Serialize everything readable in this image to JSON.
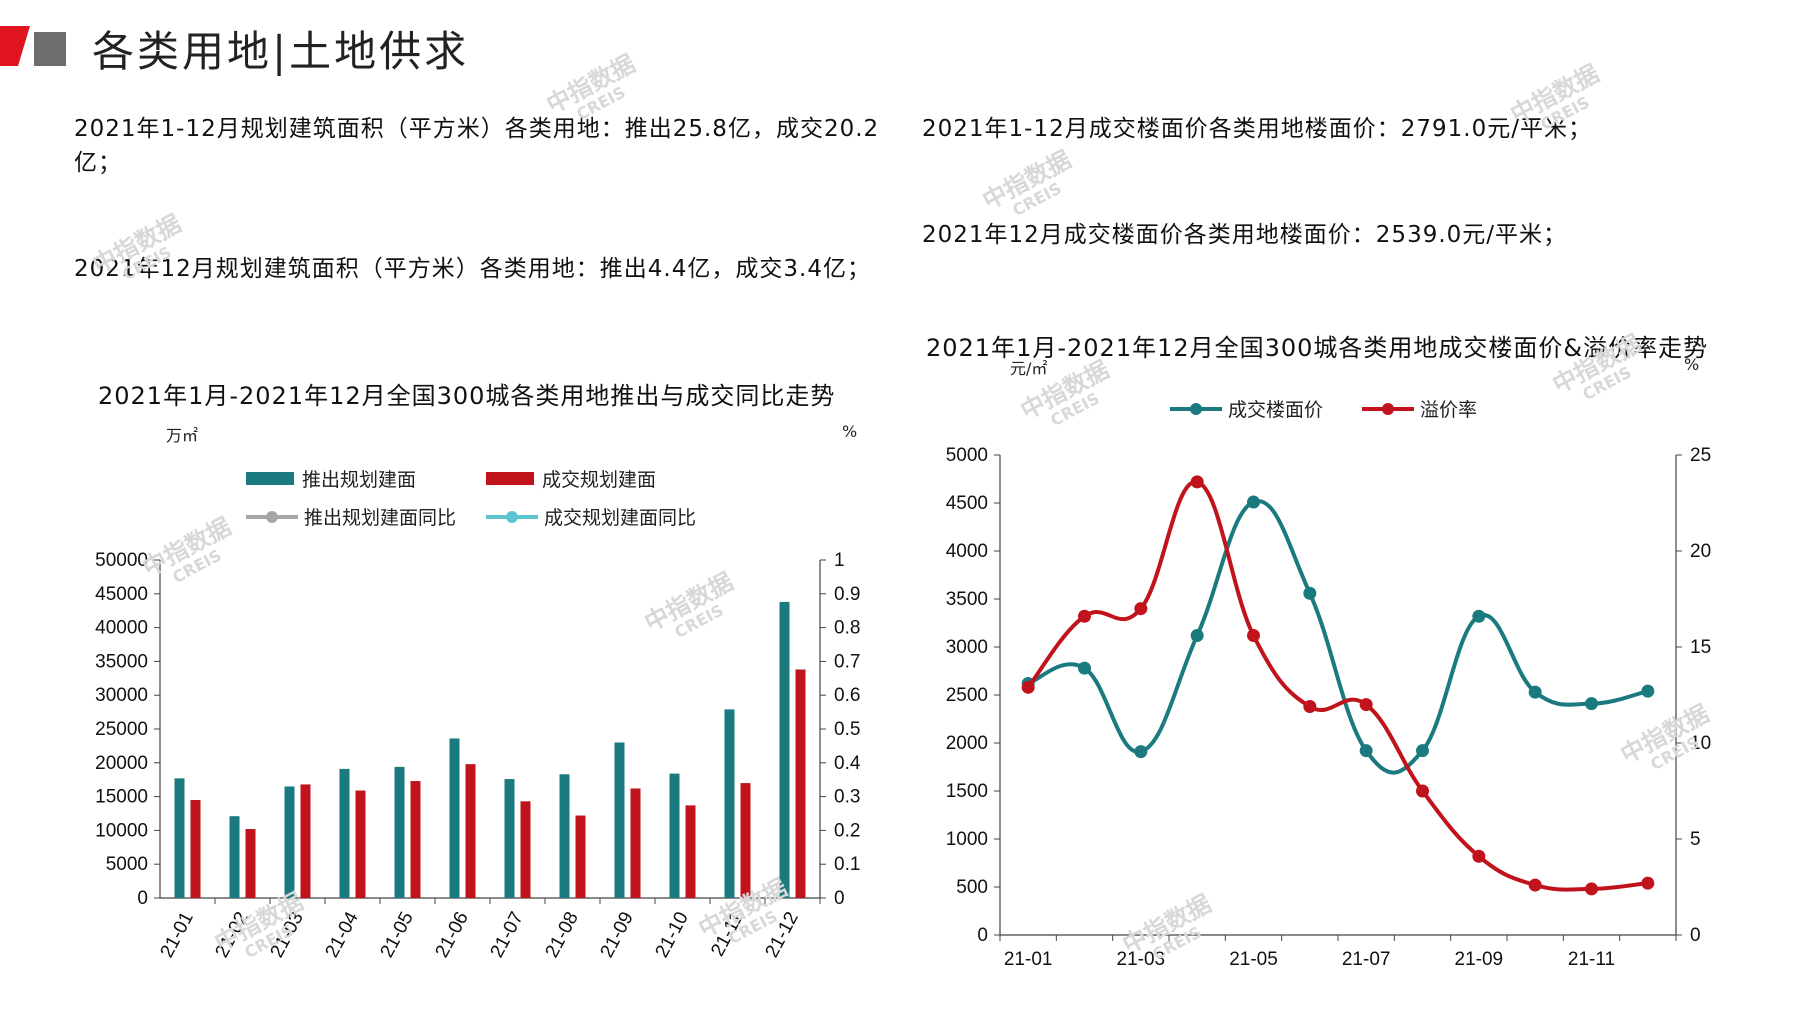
{
  "header": {
    "title": "各类用地|土地供求"
  },
  "summaries": {
    "left_1": "2021年1-12月规划建筑面积（平方米）各类用地：推出25.8亿，成交20.2亿；",
    "left_2": "2021年12月规划建筑面积（平方米）各类用地：推出4.4亿，成交3.4亿；",
    "right_1": "2021年1-12月成交楼面价各类用地楼面价：2791.0元/平米；",
    "right_2": "2021年12月成交楼面价各类用地楼面价：2539.0元/平米；"
  },
  "watermark": {
    "text": "中指数据",
    "sub": "CREIS"
  },
  "colors": {
    "teal": "#1b7a80",
    "red": "#c0131b",
    "gray": "#a6a6a6",
    "cyan": "#5bc4cf",
    "logo_red": "#e0141e",
    "logo_gray": "#6d6d6d"
  },
  "chart_data": [
    {
      "type": "bar",
      "title": "2021年1月-2021年12月全国300城各类用地推出与成交同比走势",
      "left_unit": "万㎡",
      "right_unit": "%",
      "categories": [
        "21-01",
        "21-02",
        "21-03",
        "21-04",
        "21-05",
        "21-06",
        "21-07",
        "21-08",
        "21-09",
        "21-10",
        "21-11",
        "21-12"
      ],
      "series": [
        {
          "name": "推出规划建面",
          "values": [
            17700,
            12100,
            16500,
            19100,
            19400,
            23600,
            17600,
            18300,
            23000,
            18400,
            27900,
            43800
          ],
          "color": "#1b7a80"
        },
        {
          "name": "成交规划建面",
          "values": [
            14500,
            10200,
            16800,
            15900,
            17300,
            19800,
            14300,
            12200,
            16200,
            13700,
            17000,
            33800
          ],
          "color": "#c0131b"
        }
      ],
      "line_series_legend": [
        {
          "name": "推出规划建面同比",
          "color": "#a6a6a6"
        },
        {
          "name": "成交规划建面同比",
          "color": "#5bc4cf"
        }
      ],
      "left_axis": {
        "min": 0,
        "max": 50000,
        "step": 5000
      },
      "right_axis": {
        "ticks": [
          "0",
          "0.1",
          "0.2",
          "0.3",
          "0.4",
          "0.5",
          "0.6",
          "0.7",
          "0.8",
          "0.9",
          "1"
        ]
      },
      "legend_position": "top"
    },
    {
      "type": "line",
      "title": "2021年1月-2021年12月全国300城各类用地成交楼面价&溢价率走势",
      "left_unit": "元/㎡",
      "right_unit": "%",
      "x": [
        "21-01",
        "21-02",
        "21-03",
        "21-04",
        "21-05",
        "21-06",
        "21-07",
        "21-08",
        "21-09",
        "21-10",
        "21-11",
        "21-12"
      ],
      "x_tick_labels": [
        "21-01",
        "21-03",
        "21-05",
        "21-07",
        "21-09",
        "21-11"
      ],
      "series": [
        {
          "name": "成交楼面价",
          "axis": "left",
          "values": [
            2620,
            2780,
            1910,
            3120,
            4510,
            3560,
            1920,
            1920,
            3320,
            2530,
            2410,
            2540
          ],
          "color": "#1b7a80"
        },
        {
          "name": "溢价率",
          "axis": "right",
          "values": [
            12.9,
            16.6,
            17.0,
            23.6,
            15.6,
            11.9,
            12.0,
            7.5,
            4.1,
            2.6,
            2.4,
            2.7
          ],
          "color": "#c0131b"
        }
      ],
      "left_axis": {
        "min": 0,
        "max": 5000,
        "step": 500
      },
      "right_axis": {
        "min": 0,
        "max": 25,
        "step": 5
      },
      "legend_position": "top"
    }
  ]
}
